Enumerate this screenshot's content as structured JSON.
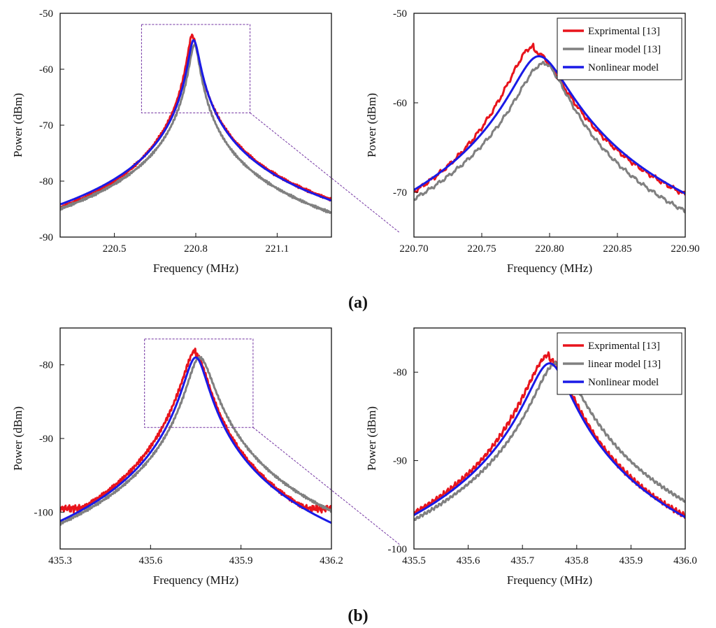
{
  "panels": [
    {
      "label": "a",
      "label_text": "(a)"
    },
    {
      "label": "b",
      "label_text": "(b)"
    }
  ],
  "series_styles": [
    {
      "name": "Exprimental [13]",
      "color": "#e8141c"
    },
    {
      "name": "linear model [13]",
      "color": "#808080"
    },
    {
      "name": "Nonlinear model",
      "color": "#1a1ae6"
    }
  ],
  "zoom_box_color": "#7030a0",
  "chart_data": [
    {
      "id": "a-left",
      "type": "line",
      "panel": "a",
      "xlabel": "Frequency (MHz)",
      "ylabel": "Power (dBm)",
      "xlim": [
        220.3,
        221.3
      ],
      "ylim": [
        -90,
        -50
      ],
      "xticks": [
        220.5,
        220.8,
        221.1
      ],
      "xtick_labels": [
        "220.5",
        "220.8",
        "221.1"
      ],
      "yticks": [
        -90,
        -80,
        -70,
        -60,
        -50
      ],
      "ytick_labels": [
        "-90",
        "-80",
        "-70",
        "-60",
        "-50"
      ],
      "zoom_box": {
        "x": [
          220.6,
          221.0
        ],
        "y": [
          -67.8,
          -52
        ]
      },
      "legend": false,
      "series": [
        {
          "name": "Exprimental [13]",
          "f0": 220.788,
          "peak": -54.6,
          "bl": 0.0305,
          "br": 0.0375,
          "noise": 0.3,
          "tilt": 0.9
        },
        {
          "name": "linear model [13]",
          "f0": 220.795,
          "peak": -55.4,
          "bl": 0.033,
          "br": 0.031,
          "noise": 0.25,
          "tilt": -0.3
        },
        {
          "name": "Nonlinear model",
          "f0": 220.792,
          "peak": -54.8,
          "bl": 0.0335,
          "br": 0.0375,
          "noise": 0,
          "tilt": 0
        }
      ]
    },
    {
      "id": "a-right",
      "type": "line",
      "panel": "a",
      "xlabel": "Frequency (MHz)",
      "ylabel": "Power (dBm)",
      "xlim": [
        220.7,
        220.9
      ],
      "ylim": [
        -75,
        -50
      ],
      "xticks": [
        220.7,
        220.75,
        220.8,
        220.85,
        220.9
      ],
      "xtick_labels": [
        "220.70",
        "220.75",
        "220.80",
        "220.85",
        "220.90"
      ],
      "yticks": [
        -70,
        -60,
        -50
      ],
      "ytick_labels": [
        "-70",
        "-60",
        "-50"
      ],
      "legend": true,
      "series": [
        {
          "name": "Exprimental [13]",
          "f0": 220.788,
          "peak": -54.6,
          "bl": 0.0305,
          "br": 0.0375,
          "noise": 0.3,
          "tilt": 0.9
        },
        {
          "name": "linear model [13]",
          "f0": 220.795,
          "peak": -55.4,
          "bl": 0.033,
          "br": 0.031,
          "noise": 0.25,
          "tilt": -0.3
        },
        {
          "name": "Nonlinear model",
          "f0": 220.792,
          "peak": -54.8,
          "bl": 0.0335,
          "br": 0.0375,
          "noise": 0,
          "tilt": 0
        }
      ]
    },
    {
      "id": "b-left",
      "type": "line",
      "panel": "b",
      "xlabel": "Frequency (MHz)",
      "ylabel": "Power (dBm)",
      "xlim": [
        435.3,
        436.2
      ],
      "ylim": [
        -105,
        -75
      ],
      "xticks": [
        435.3,
        435.6,
        435.9,
        436.2
      ],
      "xtick_labels": [
        "435.3",
        "435.6",
        "435.9",
        "436.2"
      ],
      "yticks": [
        -100,
        -90,
        -80
      ],
      "ytick_labels": [
        "-100",
        "-90",
        "-80"
      ],
      "zoom_box": {
        "x": [
          435.58,
          435.94
        ],
        "y": [
          -88.5,
          -76.5
        ]
      },
      "legend": false,
      "series": [
        {
          "name": "Exprimental [13]",
          "f0": 435.75,
          "peak": -79.0,
          "bl": 0.072,
          "br": 0.069,
          "noise": 0.35,
          "tilt": 1.0,
          "floor": -99.5
        },
        {
          "name": "linear model [13]",
          "f0": 435.762,
          "peak": -79.0,
          "bl": 0.069,
          "br": 0.08,
          "noise": 0.2,
          "tilt": 0
        },
        {
          "name": "Nonlinear model",
          "f0": 435.75,
          "peak": -79.0,
          "bl": 0.07,
          "br": 0.068,
          "noise": 0,
          "tilt": 0
        }
      ]
    },
    {
      "id": "b-right",
      "type": "line",
      "panel": "b",
      "xlabel": "Frequency (MHz)",
      "ylabel": "Power (dBm)",
      "xlim": [
        435.5,
        436.0
      ],
      "ylim": [
        -100,
        -75
      ],
      "xticks": [
        435.5,
        435.6,
        435.7,
        435.8,
        435.9,
        436.0
      ],
      "xtick_labels": [
        "435.5",
        "435.6",
        "435.7",
        "435.8",
        "435.9",
        "436.0"
      ],
      "yticks": [
        -100,
        -90,
        -80
      ],
      "ytick_labels": [
        "-100",
        "-90",
        "-80"
      ],
      "legend": true,
      "series": [
        {
          "name": "Exprimental [13]",
          "f0": 435.75,
          "peak": -79.0,
          "bl": 0.072,
          "br": 0.069,
          "noise": 0.35,
          "tilt": 1.0,
          "floor": -99.5
        },
        {
          "name": "linear model [13]",
          "f0": 435.762,
          "peak": -79.0,
          "bl": 0.069,
          "br": 0.08,
          "noise": 0.2,
          "tilt": 0
        },
        {
          "name": "Nonlinear model",
          "f0": 435.75,
          "peak": -79.0,
          "bl": 0.07,
          "br": 0.068,
          "noise": 0,
          "tilt": 0
        }
      ]
    }
  ]
}
